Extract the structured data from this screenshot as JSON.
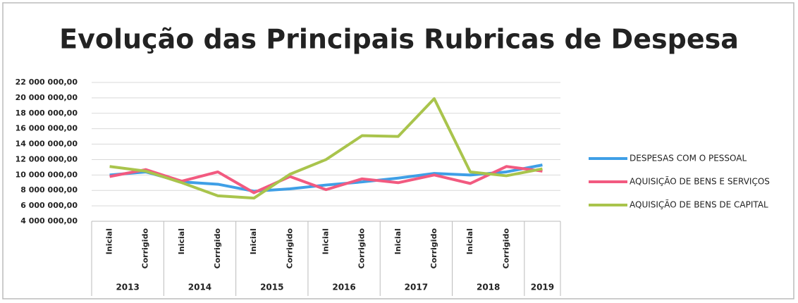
{
  "chart_data": {
    "type": "line",
    "title": "Evolução das Principais Rubricas de Despesa",
    "categories": [
      "Inicial",
      "Corrigido",
      "Inicial",
      "Corrigido",
      "Inicial",
      "Corrigido",
      "Inicial",
      "Corrigido",
      "Inicial",
      "Corrigido",
      "Inicial",
      "Corrigido",
      null
    ],
    "groups": [
      {
        "label": "2013",
        "span": 2
      },
      {
        "label": "2014",
        "span": 2
      },
      {
        "label": "2015",
        "span": 2
      },
      {
        "label": "2016",
        "span": 2
      },
      {
        "label": "2017",
        "span": 2
      },
      {
        "label": "2018",
        "span": 2
      },
      {
        "label": "2019",
        "span": 1
      }
    ],
    "series": [
      {
        "name": "DESPESAS COM O PESSOAL",
        "color": "#3f9fe6",
        "values": [
          10000000,
          10400000,
          9100000,
          8800000,
          7900000,
          8200000,
          8700000,
          9100000,
          9600000,
          10200000,
          10000000,
          10400000,
          11300000
        ]
      },
      {
        "name": "AQUISIÇÃO DE BENS E SERVIÇOS",
        "color": "#f25a80",
        "values": [
          9800000,
          10700000,
          9200000,
          10400000,
          7700000,
          9800000,
          8100000,
          9500000,
          9000000,
          10000000,
          8900000,
          11100000,
          10500000
        ]
      },
      {
        "name": "AQUISIÇÃO DE BENS DE CAPITAL",
        "color": "#a9c44c",
        "values": [
          11100000,
          10500000,
          9000000,
          7300000,
          7000000,
          10100000,
          12000000,
          15100000,
          15000000,
          19900000,
          10400000,
          9900000,
          10800000
        ]
      }
    ],
    "ylim": [
      4000000,
      22000000
    ],
    "yticks": [
      {
        "value": 4000000,
        "label": "4 000 000,00"
      },
      {
        "value": 6000000,
        "label": "6 000 000,00"
      },
      {
        "value": 8000000,
        "label": "8 000 000,00"
      },
      {
        "value": 10000000,
        "label": "10 000 000,00"
      },
      {
        "value": 12000000,
        "label": "12 000 000,00"
      },
      {
        "value": 14000000,
        "label": "14 000 000,00"
      },
      {
        "value": 16000000,
        "label": "16 000 000,00"
      },
      {
        "value": 18000000,
        "label": "18 000 000,00"
      },
      {
        "value": 20000000,
        "label": "20 000 000,00"
      },
      {
        "value": 22000000,
        "label": "22 000 000,00"
      }
    ],
    "grid": true,
    "legend": "right"
  }
}
